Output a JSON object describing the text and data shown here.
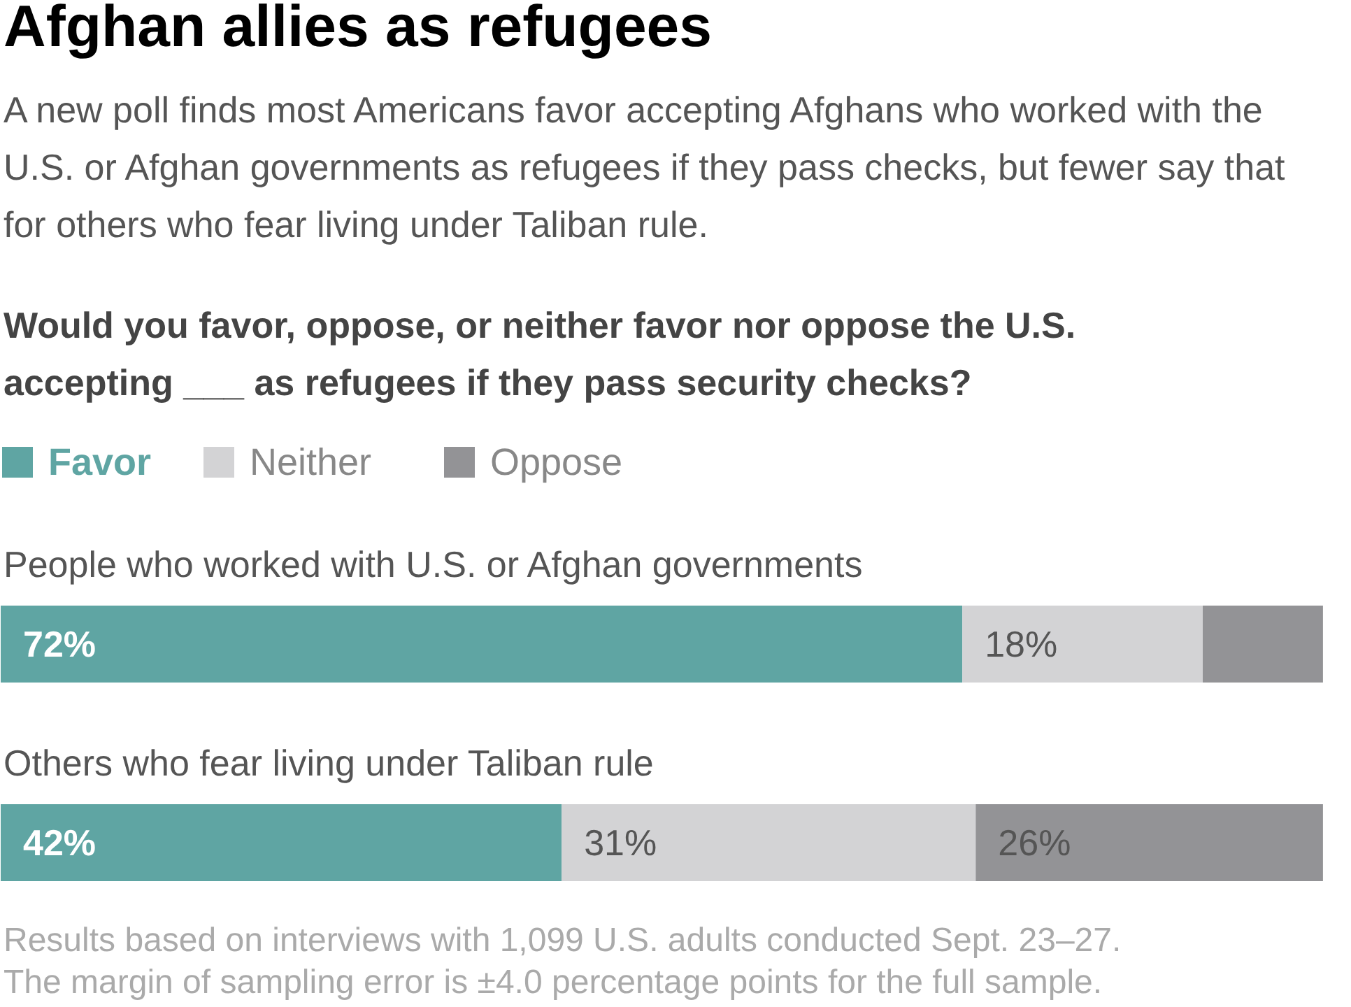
{
  "chart_data": {
    "type": "bar",
    "orientation": "horizontal",
    "stacked": true,
    "title": "Afghan allies as refugees",
    "subtitle": "A new poll finds most Americans favor accepting Afghans who worked with the U.S. or Afghan governments as refugees if they pass checks, but fewer say that for others who fear living under Taliban rule.",
    "legend_title": "Would you favor, oppose, or neither favor nor oppose the U.S. accepting ___ as refugees if they pass security checks?",
    "categories": [
      "People who worked with U.S. or Afghan governments",
      "Others who fear living under Taliban rule"
    ],
    "series": [
      {
        "name": "Favor",
        "color": "#5fa5a3",
        "values": [
          72,
          42
        ],
        "value_labels": [
          "72%",
          "42%"
        ]
      },
      {
        "name": "Neither",
        "color": "#d3d3d5",
        "values": [
          18,
          31
        ],
        "value_labels": [
          "18%",
          "31%"
        ]
      },
      {
        "name": "Oppose",
        "color": "#939396",
        "values": [
          9,
          26
        ],
        "value_labels": [
          null,
          "26%"
        ]
      }
    ],
    "legend": "top left",
    "annotations": [
      "Results based on interviews with 1,099 U.S. adults conducted Sept. 23–27.",
      "The margin of sampling error is ±4.0 percentage points for the full sample."
    ]
  }
}
